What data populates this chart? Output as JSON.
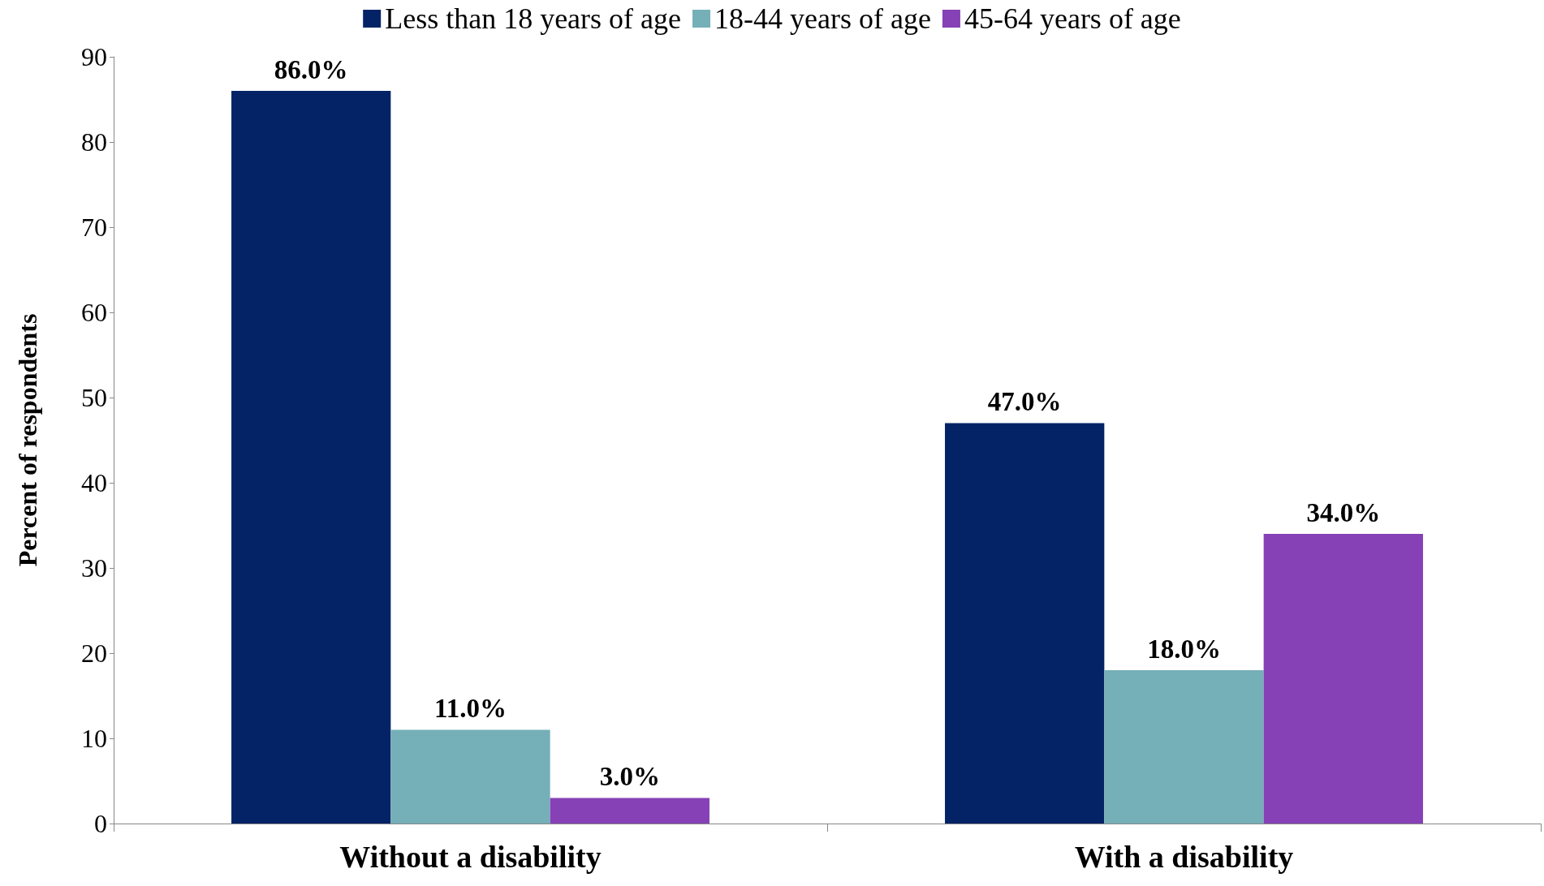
{
  "chart_data": {
    "type": "bar",
    "ylabel": "Percent of respondents",
    "categories": [
      "Without a disability",
      "With a disability"
    ],
    "series": [
      {
        "name": "Less than 18 years of age",
        "color": "#042366",
        "values": [
          86,
          47
        ],
        "value_labels": [
          "86.0%",
          "47.0%"
        ]
      },
      {
        "name": "18-44 years of age",
        "color": "#75afb8",
        "values": [
          11,
          18
        ],
        "value_labels": [
          "11.0%",
          "18.0%"
        ]
      },
      {
        "name": "45-64 years of age",
        "color": "#8541b5",
        "values": [
          3,
          34
        ],
        "value_labels": [
          "3.0%",
          "34.0%"
        ]
      }
    ],
    "ylim": [
      0,
      90
    ],
    "yticks": [
      0,
      10,
      20,
      30,
      40,
      50,
      60,
      70,
      80,
      90
    ],
    "grid": false,
    "legend": "top"
  }
}
